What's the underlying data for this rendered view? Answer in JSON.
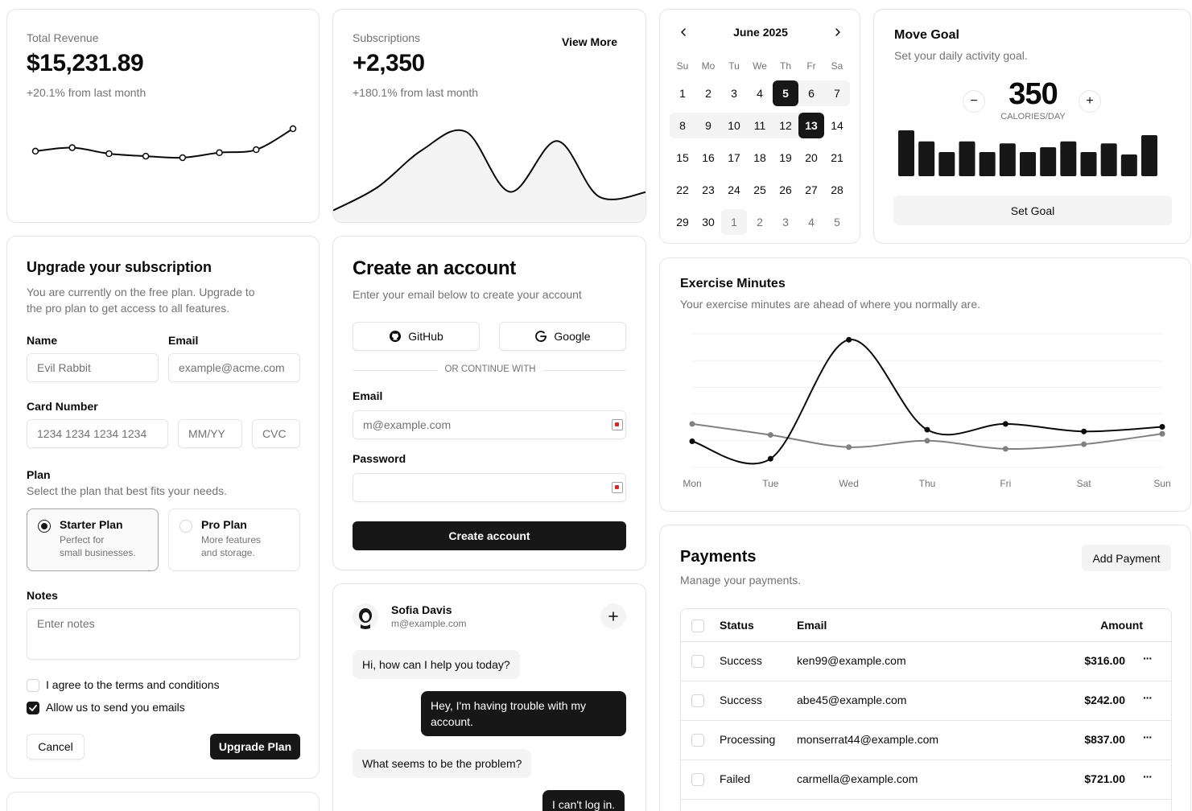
{
  "revenue": {
    "title": "Total Revenue",
    "value": "$15,231.89",
    "change": "+20.1% from last month",
    "chart_data": {
      "type": "line",
      "x": [
        1,
        2,
        3,
        4,
        5,
        6,
        7,
        8
      ],
      "values": [
        0.55,
        0.62,
        0.5,
        0.45,
        0.42,
        0.52,
        0.58,
        1.0
      ]
    }
  },
  "subscriptions": {
    "title": "Subscriptions",
    "value": "+2,350",
    "change": "+180.1% from last month",
    "view_more": "View More",
    "chart_data": {
      "type": "area",
      "x": [
        1,
        2,
        3,
        4,
        5,
        6,
        7,
        8
      ],
      "values": [
        0.1,
        0.35,
        0.75,
        0.95,
        0.3,
        0.85,
        0.25,
        0.3
      ]
    }
  },
  "calendar": {
    "month_label": "June 2025",
    "weekdays": [
      "Su",
      "Mo",
      "Tu",
      "We",
      "Th",
      "Fr",
      "Sa"
    ],
    "weeks": [
      [
        "1",
        "2",
        "3",
        "4",
        "5",
        "6",
        "7"
      ],
      [
        "8",
        "9",
        "10",
        "11",
        "12",
        "13",
        "14"
      ],
      [
        "15",
        "16",
        "17",
        "18",
        "19",
        "20",
        "21"
      ],
      [
        "22",
        "23",
        "24",
        "25",
        "26",
        "27",
        "28"
      ],
      [
        "29",
        "30",
        "1",
        "2",
        "3",
        "4",
        "5"
      ]
    ],
    "selected": [
      "5",
      "13"
    ]
  },
  "move_goal": {
    "title": "Move Goal",
    "subtitle": "Set your daily activity goal.",
    "value": "350",
    "unit": "CALORIES/DAY",
    "decrement": "−",
    "increment": "+",
    "button": "Set Goal",
    "chart_data": {
      "type": "bar",
      "values": [
        0.95,
        0.72,
        0.5,
        0.72,
        0.5,
        0.68,
        0.5,
        0.6,
        0.72,
        0.5,
        0.68,
        0.45,
        0.85
      ]
    }
  },
  "exercise": {
    "title": "Exercise Minutes",
    "subtitle": "Your exercise minutes are ahead of where you normally are.",
    "chart_data": {
      "type": "line",
      "categories": [
        "Mon",
        "Tue",
        "Wed",
        "Thu",
        "Fri",
        "Sat",
        "Sun"
      ],
      "series": [
        {
          "values": [
            245,
            215,
            420,
            265,
            275,
            262,
            270
          ]
        },
        {
          "values": [
            275,
            256,
            235,
            246,
            232,
            240,
            258
          ]
        }
      ]
    }
  },
  "upgrade": {
    "title": "Upgrade your subscription",
    "description": "You are currently on the free plan. Upgrade to the pro plan to get access to all features.",
    "name_label": "Name",
    "name_placeholder": "Evil Rabbit",
    "email_label": "Email",
    "email_placeholder": "example@acme.com",
    "card_label": "Card Number",
    "card_placeholder": "1234 1234 1234 1234",
    "expiry_placeholder": "MM/YY",
    "cvc_placeholder": "CVC",
    "plan_label": "Plan",
    "plan_hint": "Select the plan that best fits your needs.",
    "plans": [
      {
        "name": "Starter Plan",
        "desc1": "Perfect for",
        "desc2": "small businesses.",
        "selected": true
      },
      {
        "name": "Pro Plan",
        "desc1": "More features",
        "desc2": "and storage.",
        "selected": false
      }
    ],
    "notes_label": "Notes",
    "notes_placeholder": "Enter notes",
    "terms": "I agree to the terms and conditions",
    "emails": "Allow us to send you emails",
    "cancel": "Cancel",
    "submit": "Upgrade Plan"
  },
  "account": {
    "title": "Create an account",
    "subtitle": "Enter your email below to create your account",
    "github": "GitHub",
    "google": "Google",
    "divider": "OR CONTINUE WITH",
    "email_label": "Email",
    "email_placeholder": "m@example.com",
    "password_label": "Password",
    "submit": "Create account"
  },
  "chat": {
    "name": "Sofia Davis",
    "email": "m@example.com",
    "messages": [
      {
        "from": "in",
        "text": "Hi, how can I help you today?"
      },
      {
        "from": "out",
        "text": "Hey, I'm having trouble with my account."
      },
      {
        "from": "in",
        "text": "What seems to be the problem?"
      },
      {
        "from": "out",
        "text": "I can't log in."
      }
    ]
  },
  "payments": {
    "title": "Payments",
    "subtitle": "Manage your payments.",
    "add_button": "Add Payment",
    "columns": {
      "status": "Status",
      "email": "Email",
      "amount": "Amount"
    },
    "rows": [
      {
        "status": "Success",
        "email": "ken99@example.com",
        "amount": "$316.00"
      },
      {
        "status": "Success",
        "email": "abe45@example.com",
        "amount": "$242.00"
      },
      {
        "status": "Processing",
        "email": "monserrat44@example.com",
        "amount": "$837.00"
      },
      {
        "status": "Failed",
        "email": "carmella@example.com",
        "amount": "$721.00"
      }
    ],
    "more": "···"
  }
}
